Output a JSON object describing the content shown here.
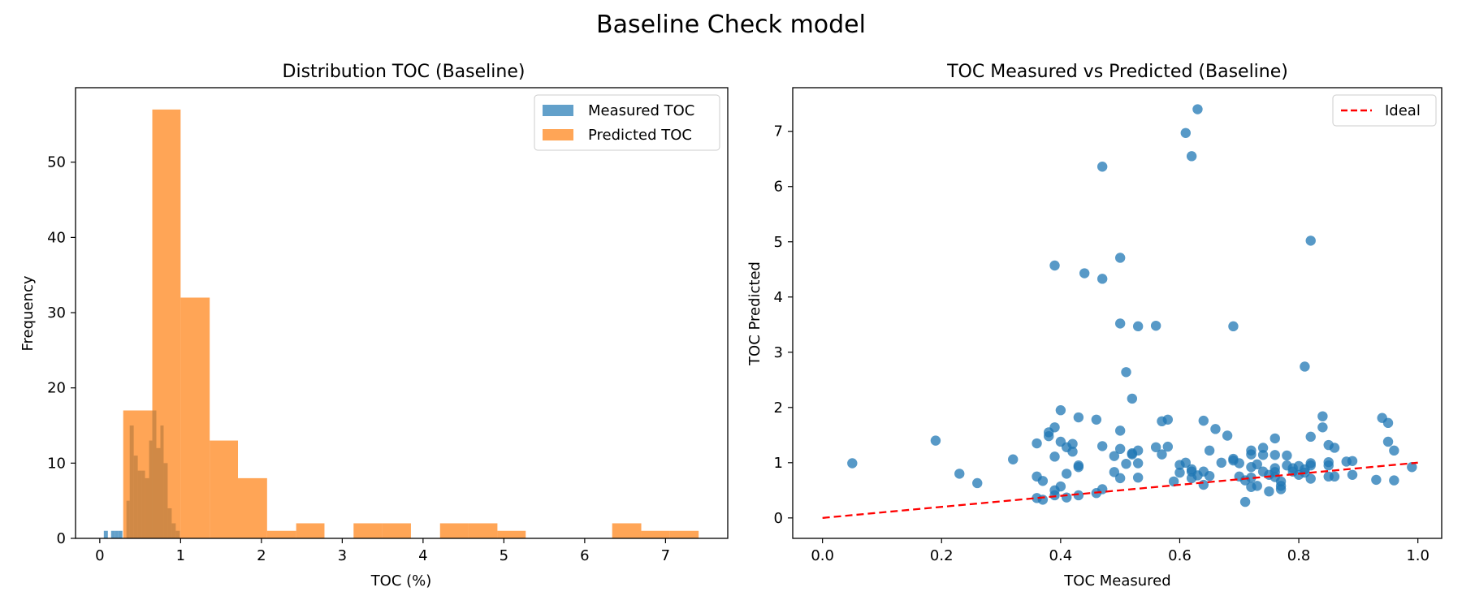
{
  "figure": {
    "title": "Baseline Check model"
  },
  "colors": {
    "measured": "#1f77b4",
    "predicted": "#ff7f0e",
    "ideal": "#ff0000"
  },
  "chart_data": [
    {
      "type": "histogram",
      "title": "Distribution TOC (Baseline)",
      "xlabel": "TOC (%)",
      "ylabel": "Frequency",
      "xlim": [
        -0.3,
        7.77
      ],
      "ylim": [
        0,
        59.9
      ],
      "xticks": [
        0,
        1,
        2,
        3,
        4,
        5,
        6,
        7
      ],
      "yticks": [
        0,
        10,
        20,
        30,
        40,
        50
      ],
      "legend": {
        "position": "top-right"
      },
      "series": [
        {
          "name": "Measured TOC",
          "color": "#1f77b4",
          "opacity": 0.7,
          "bins": [
            {
              "x0": 0.05,
              "x1": 0.1,
              "count": 1
            },
            {
              "x0": 0.1,
              "x1": 0.14,
              "count": 0
            },
            {
              "x0": 0.14,
              "x1": 0.19,
              "count": 1
            },
            {
              "x0": 0.19,
              "x1": 0.23,
              "count": 1
            },
            {
              "x0": 0.23,
              "x1": 0.28,
              "count": 1
            },
            {
              "x0": 0.28,
              "x1": 0.33,
              "count": 0
            },
            {
              "x0": 0.33,
              "x1": 0.37,
              "count": 5
            },
            {
              "x0": 0.37,
              "x1": 0.42,
              "count": 15
            },
            {
              "x0": 0.42,
              "x1": 0.47,
              "count": 11
            },
            {
              "x0": 0.47,
              "x1": 0.52,
              "count": 9
            },
            {
              "x0": 0.52,
              "x1": 0.56,
              "count": 9
            },
            {
              "x0": 0.56,
              "x1": 0.61,
              "count": 8
            },
            {
              "x0": 0.61,
              "x1": 0.65,
              "count": 13
            },
            {
              "x0": 0.65,
              "x1": 0.7,
              "count": 17
            },
            {
              "x0": 0.7,
              "x1": 0.75,
              "count": 12
            },
            {
              "x0": 0.75,
              "x1": 0.79,
              "count": 15
            },
            {
              "x0": 0.79,
              "x1": 0.84,
              "count": 10
            },
            {
              "x0": 0.84,
              "x1": 0.89,
              "count": 4
            },
            {
              "x0": 0.89,
              "x1": 0.94,
              "count": 2
            },
            {
              "x0": 0.94,
              "x1": 0.99,
              "count": 1
            }
          ]
        },
        {
          "name": "Predicted TOC",
          "color": "#ff7f0e",
          "opacity": 0.7,
          "bins": [
            {
              "x0": 0.29,
              "x1": 0.65,
              "count": 17
            },
            {
              "x0": 0.65,
              "x1": 1.0,
              "count": 57
            },
            {
              "x0": 1.0,
              "x1": 1.36,
              "count": 32
            },
            {
              "x0": 1.36,
              "x1": 1.71,
              "count": 13
            },
            {
              "x0": 1.71,
              "x1": 2.07,
              "count": 8
            },
            {
              "x0": 2.07,
              "x1": 2.43,
              "count": 1
            },
            {
              "x0": 2.43,
              "x1": 2.78,
              "count": 2
            },
            {
              "x0": 2.78,
              "x1": 3.14,
              "count": 0
            },
            {
              "x0": 3.14,
              "x1": 3.49,
              "count": 2
            },
            {
              "x0": 3.49,
              "x1": 3.85,
              "count": 2
            },
            {
              "x0": 3.85,
              "x1": 4.21,
              "count": 0
            },
            {
              "x0": 4.21,
              "x1": 4.56,
              "count": 2
            },
            {
              "x0": 4.56,
              "x1": 4.92,
              "count": 2
            },
            {
              "x0": 4.92,
              "x1": 5.27,
              "count": 1
            },
            {
              "x0": 5.27,
              "x1": 5.63,
              "count": 0
            },
            {
              "x0": 5.63,
              "x1": 5.99,
              "count": 0
            },
            {
              "x0": 5.99,
              "x1": 6.34,
              "count": 0
            },
            {
              "x0": 6.34,
              "x1": 6.7,
              "count": 2
            },
            {
              "x0": 6.7,
              "x1": 7.05,
              "count": 1
            },
            {
              "x0": 7.05,
              "x1": 7.41,
              "count": 1
            }
          ]
        }
      ]
    },
    {
      "type": "scatter",
      "title": "TOC Measured vs Predicted (Baseline)",
      "xlabel": "TOC Measured",
      "ylabel": "TOC Predicted",
      "xlim": [
        -0.05,
        1.04
      ],
      "ylim": [
        -0.37,
        7.79
      ],
      "xticks": [
        0.0,
        0.2,
        0.4,
        0.6,
        0.8,
        1.0
      ],
      "yticks": [
        0,
        1,
        2,
        3,
        4,
        5,
        6,
        7
      ],
      "legend": {
        "position": "top-right"
      },
      "series": [
        {
          "name": "",
          "color": "#1f77b4",
          "opacity": 0.75,
          "points": [
            [
              0.05,
              0.99
            ],
            [
              0.19,
              1.4
            ],
            [
              0.23,
              0.8
            ],
            [
              0.26,
              0.63
            ],
            [
              0.32,
              1.06
            ],
            [
              0.36,
              1.35
            ],
            [
              0.36,
              0.75
            ],
            [
              0.36,
              0.36
            ],
            [
              0.37,
              0.67
            ],
            [
              0.37,
              0.33
            ],
            [
              0.38,
              1.55
            ],
            [
              0.38,
              1.48
            ],
            [
              0.39,
              1.64
            ],
            [
              0.39,
              1.11
            ],
            [
              0.39,
              0.5
            ],
            [
              0.39,
              0.41
            ],
            [
              0.39,
              4.57
            ],
            [
              0.4,
              1.95
            ],
            [
              0.4,
              1.38
            ],
            [
              0.4,
              0.57
            ],
            [
              0.41,
              1.28
            ],
            [
              0.41,
              0.8
            ],
            [
              0.41,
              0.37
            ],
            [
              0.42,
              1.34
            ],
            [
              0.42,
              1.2
            ],
            [
              0.43,
              1.82
            ],
            [
              0.43,
              0.95
            ],
            [
              0.43,
              0.92
            ],
            [
              0.43,
              0.41
            ],
            [
              0.44,
              4.43
            ],
            [
              0.46,
              1.78
            ],
            [
              0.46,
              0.45
            ],
            [
              0.47,
              6.36
            ],
            [
              0.47,
              4.33
            ],
            [
              0.47,
              1.3
            ],
            [
              0.47,
              0.52
            ],
            [
              0.49,
              1.12
            ],
            [
              0.49,
              0.83
            ],
            [
              0.5,
              4.71
            ],
            [
              0.5,
              3.52
            ],
            [
              0.5,
              1.58
            ],
            [
              0.5,
              1.25
            ],
            [
              0.5,
              0.72
            ],
            [
              0.51,
              2.64
            ],
            [
              0.51,
              0.98
            ],
            [
              0.52,
              2.16
            ],
            [
              0.52,
              1.17
            ],
            [
              0.52,
              1.15
            ],
            [
              0.53,
              3.47
            ],
            [
              0.53,
              1.22
            ],
            [
              0.53,
              0.99
            ],
            [
              0.53,
              0.73
            ],
            [
              0.56,
              3.48
            ],
            [
              0.56,
              1.28
            ],
            [
              0.57,
              1.75
            ],
            [
              0.57,
              1.15
            ],
            [
              0.58,
              1.78
            ],
            [
              0.58,
              1.29
            ],
            [
              0.59,
              0.66
            ],
            [
              0.6,
              0.96
            ],
            [
              0.6,
              0.82
            ],
            [
              0.61,
              6.97
            ],
            [
              0.61,
              1.0
            ],
            [
              0.62,
              6.55
            ],
            [
              0.62,
              0.88
            ],
            [
              0.62,
              0.84
            ],
            [
              0.62,
              0.72
            ],
            [
              0.63,
              7.4
            ],
            [
              0.63,
              0.77
            ],
            [
              0.64,
              1.76
            ],
            [
              0.64,
              0.84
            ],
            [
              0.64,
              0.6
            ],
            [
              0.65,
              1.22
            ],
            [
              0.65,
              0.76
            ],
            [
              0.66,
              1.61
            ],
            [
              0.67,
              1.0
            ],
            [
              0.68,
              1.49
            ],
            [
              0.69,
              3.47
            ],
            [
              0.69,
              1.07
            ],
            [
              0.69,
              1.04
            ],
            [
              0.7,
              0.99
            ],
            [
              0.7,
              0.75
            ],
            [
              0.71,
              0.29
            ],
            [
              0.71,
              0.68
            ],
            [
              0.72,
              1.22
            ],
            [
              0.72,
              1.15
            ],
            [
              0.72,
              0.92
            ],
            [
              0.72,
              0.73
            ],
            [
              0.72,
              0.56
            ],
            [
              0.73,
              0.97
            ],
            [
              0.73,
              0.58
            ],
            [
              0.74,
              1.27
            ],
            [
              0.74,
              1.14
            ],
            [
              0.74,
              0.84
            ],
            [
              0.75,
              0.78
            ],
            [
              0.75,
              0.48
            ],
            [
              0.76,
              1.44
            ],
            [
              0.76,
              1.14
            ],
            [
              0.76,
              0.9
            ],
            [
              0.76,
              0.83
            ],
            [
              0.76,
              0.74
            ],
            [
              0.77,
              0.66
            ],
            [
              0.77,
              0.58
            ],
            [
              0.77,
              0.52
            ],
            [
              0.78,
              1.13
            ],
            [
              0.78,
              0.95
            ],
            [
              0.79,
              0.9
            ],
            [
              0.79,
              0.84
            ],
            [
              0.8,
              0.94
            ],
            [
              0.8,
              0.78
            ],
            [
              0.81,
              2.74
            ],
            [
              0.81,
              0.88
            ],
            [
              0.81,
              0.82
            ],
            [
              0.82,
              5.02
            ],
            [
              0.82,
              1.47
            ],
            [
              0.82,
              0.99
            ],
            [
              0.82,
              0.95
            ],
            [
              0.82,
              0.71
            ],
            [
              0.84,
              1.84
            ],
            [
              0.84,
              1.64
            ],
            [
              0.85,
              1.32
            ],
            [
              0.85,
              1.01
            ],
            [
              0.85,
              0.95
            ],
            [
              0.85,
              0.75
            ],
            [
              0.86,
              1.27
            ],
            [
              0.86,
              0.75
            ],
            [
              0.88,
              1.02
            ],
            [
              0.89,
              1.03
            ],
            [
              0.89,
              0.78
            ],
            [
              0.93,
              0.69
            ],
            [
              0.94,
              1.81
            ],
            [
              0.95,
              1.72
            ],
            [
              0.95,
              1.38
            ],
            [
              0.96,
              1.22
            ],
            [
              0.96,
              0.68
            ],
            [
              0.99,
              0.92
            ]
          ]
        },
        {
          "name": "Ideal",
          "type": "line",
          "color": "#ff0000",
          "dashed": true,
          "points": [
            [
              0.0,
              0.0
            ],
            [
              1.0,
              1.0
            ]
          ]
        }
      ]
    }
  ]
}
